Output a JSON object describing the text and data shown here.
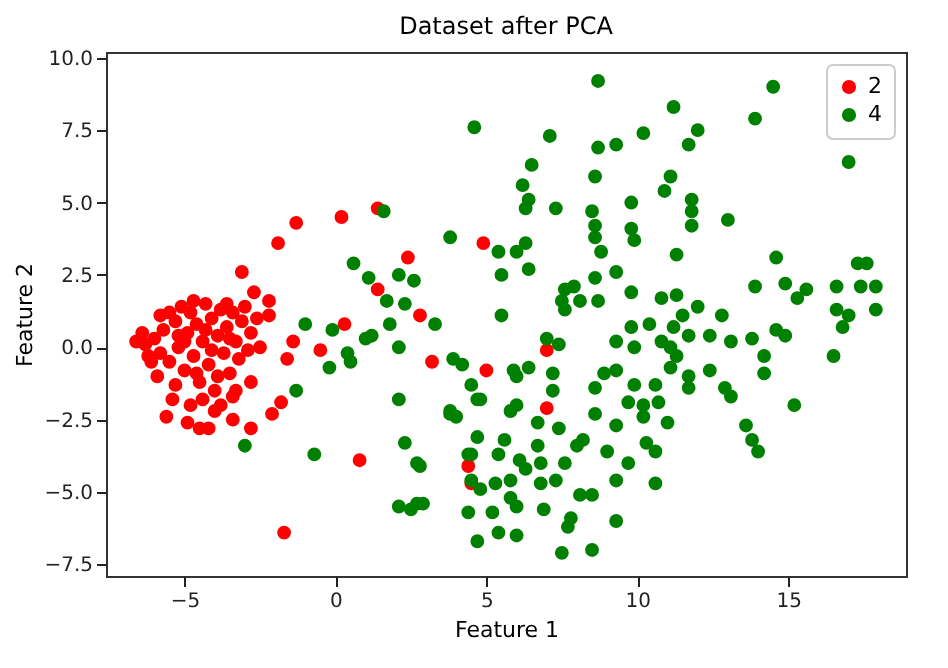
{
  "chart_data": {
    "type": "scatter",
    "title": "Dataset after PCA",
    "xlabel": "Feature 1",
    "ylabel": "Feature 2",
    "xlim": [
      -7.6,
      18.9
    ],
    "ylim": [
      -7.9,
      10.2
    ],
    "xticks": [
      {
        "value": -5,
        "label": "−5"
      },
      0,
      5,
      10,
      15
    ],
    "yticks": [
      {
        "value": -7.5,
        "label": "−7.5"
      },
      {
        "value": -5,
        "label": "−5.0"
      },
      {
        "value": -2.5,
        "label": "−2.5"
      },
      {
        "value": 0,
        "label": "0.0"
      },
      {
        "value": 2.5,
        "label": "2.5"
      },
      {
        "value": 5,
        "label": "5.0"
      },
      {
        "value": 7.5,
        "label": "7.5"
      },
      {
        "value": 10,
        "label": "10.0"
      }
    ],
    "grid": false,
    "legend": "top right",
    "marker": "circle",
    "series": [
      {
        "name": "2",
        "color": "#ff0000",
        "x": [
          1.4,
          0.2,
          -1.3,
          -1.9,
          -3.1,
          2.4,
          1.4,
          2.8,
          0.3,
          -1.4,
          -1.6,
          -0.5,
          3.2,
          5.0,
          4.9,
          0.8,
          -1.7,
          -1.8,
          -2.1,
          -2.8,
          -3.4,
          -3.4,
          -2.8,
          -2.7,
          -2.2,
          -2.2,
          7.0,
          7.0,
          4.5,
          4.4,
          -6.6,
          -6.3,
          -6.0,
          -5.8,
          -5.7,
          -5.5,
          -5.5,
          -5.3,
          -5.2,
          -5.1,
          -5.0,
          -4.9,
          -4.8,
          -4.7,
          -4.6,
          -4.5,
          -4.4,
          -4.3,
          -4.2,
          -4.1,
          -4.0,
          -3.9,
          -3.8,
          -3.7,
          -3.6,
          -3.5,
          -3.4,
          -3.3,
          -3.2,
          -3.1,
          -3.0,
          -2.9,
          -2.8,
          -2.6,
          -2.5,
          -5.4,
          -5.6,
          -4.8,
          -4.9,
          -4.5,
          -4.2,
          -4.0,
          -4.4,
          -5.9,
          -6.1,
          -6.4,
          -5.2,
          -4.6,
          -3.9,
          -4.3,
          -5.0,
          -3.5,
          -4.7,
          -3.6,
          -5.8,
          -4.1,
          -3.3,
          -6.2,
          -5.3,
          -3.8
        ],
        "values": [
          4.8,
          4.5,
          4.3,
          3.6,
          2.6,
          3.1,
          2.0,
          1.1,
          0.8,
          0.2,
          -0.4,
          -0.1,
          -0.5,
          -0.8,
          3.6,
          -3.9,
          -6.4,
          -1.9,
          -2.3,
          -2.8,
          -2.5,
          -1.7,
          -1.2,
          1.9,
          1.6,
          1.1,
          -0.1,
          -2.1,
          -4.7,
          -4.1,
          0.2,
          0.1,
          0.3,
          -0.2,
          0.6,
          1.2,
          -0.5,
          0.9,
          0.0,
          1.4,
          -0.8,
          0.5,
          1.2,
          -0.3,
          0.8,
          -1.2,
          0.2,
          1.5,
          -0.6,
          1.0,
          -1.5,
          0.4,
          1.3,
          -0.2,
          0.7,
          -0.9,
          1.2,
          0.2,
          -0.4,
          0.9,
          1.4,
          -0.1,
          0.5,
          1.0,
          0.0,
          -1.8,
          -2.4,
          -2.0,
          -2.6,
          -2.8,
          -2.8,
          -2.2,
          -1.8,
          -1.0,
          -0.5,
          0.5,
          0.4,
          -0.9,
          -1.0,
          0.6,
          0.2,
          0.3,
          1.6,
          1.5,
          1.1,
          -0.1,
          -1.5,
          -0.3,
          -1.3,
          -2.0
        ]
      },
      {
        "name": "4",
        "color": "#008000",
        "x": [
          8.7,
          14.5,
          4.6,
          11.2,
          13.9,
          12.0,
          10.2,
          7.1,
          9.3,
          8.7,
          11.7,
          17.0,
          6.5,
          8.6,
          11.1,
          10.9,
          6.2,
          6.4,
          6.3,
          7.3,
          9.8,
          11.8,
          8.5,
          11.8,
          13.0,
          8.6,
          9.8,
          11.8,
          3.8,
          8.6,
          9.9,
          6.3,
          5.4,
          6.0,
          5.5,
          6.4,
          8.8,
          11.3,
          14.6,
          17.3,
          17.6,
          9.3,
          8.6,
          7.6,
          7.9,
          7.5,
          8.1,
          8.7,
          9.8,
          10.8,
          11.3,
          13.9,
          14.9,
          15.6,
          15.3,
          16.6,
          17.4,
          17.9,
          7.6,
          12.0,
          11.5,
          16.6,
          17.9,
          17.0,
          5.5,
          3.3,
          9.8,
          10.4,
          11.2,
          12.8,
          14.6,
          16.8,
          7.0,
          9.3,
          9.9,
          10.8,
          11.1,
          11.7,
          12.4,
          13.1,
          13.8,
          14.2,
          14.9,
          16.5,
          7.4,
          3.9,
          4.2,
          5.9,
          6.4,
          7.2,
          11.3,
          11.7,
          11.1,
          12.4,
          9.3,
          8.9,
          14.2,
          4.5,
          6.0,
          7.2,
          8.6,
          9.9,
          10.6,
          11.7,
          12.9,
          4.8,
          6.0,
          9.7,
          10.2,
          10.7,
          13.1,
          15.2,
          3.8,
          5.8,
          6.7,
          8.6,
          10.2,
          11.0,
          9.3,
          7.4,
          4.7,
          5.6,
          6.7,
          8.2,
          10.3,
          13.6,
          13.8,
          14.0,
          2.7,
          4.4,
          5.4,
          6.1,
          6.8,
          7.6,
          8.0,
          9.0,
          9.7,
          10.6,
          4.5,
          5.3,
          5.8,
          6.3,
          6.8,
          7.3,
          9.3,
          10.6,
          4.8,
          5.8,
          8.1,
          8.5,
          2.7,
          4.4,
          5.2,
          6.0,
          6.9,
          7.8,
          5.4,
          6.0,
          7.7,
          9.3,
          4.7,
          7.5,
          8.5,
          1.6,
          0.6,
          1.1,
          2.1,
          2.6,
          1.7,
          2.3,
          -1.0,
          -0.1,
          1.8,
          1.2,
          1.0,
          2.1,
          -0.2,
          0.4,
          0.5,
          -1.3,
          2.1,
          3.8,
          4.0,
          -3.0,
          -0.7,
          2.3,
          2.8,
          2.1,
          2.5,
          2.9,
          4.5,
          4.7
        ],
        "values": [
          9.2,
          9.0,
          7.6,
          8.3,
          7.9,
          7.5,
          7.4,
          7.3,
          7.0,
          6.9,
          7.0,
          6.4,
          6.3,
          5.9,
          5.9,
          5.4,
          5.6,
          5.1,
          4.8,
          4.8,
          5.0,
          5.1,
          4.7,
          4.7,
          4.4,
          4.2,
          4.1,
          4.2,
          3.8,
          3.8,
          3.7,
          3.6,
          3.3,
          3.3,
          2.5,
          2.7,
          3.3,
          3.2,
          3.1,
          2.9,
          2.9,
          2.6,
          2.4,
          2.0,
          2.1,
          1.6,
          1.6,
          1.6,
          1.9,
          1.7,
          1.8,
          2.1,
          2.2,
          2.0,
          1.7,
          2.1,
          2.1,
          2.1,
          1.3,
          1.4,
          1.1,
          1.3,
          1.3,
          1.1,
          1.1,
          0.8,
          0.7,
          0.8,
          0.7,
          1.1,
          0.6,
          0.7,
          0.3,
          0.2,
          0.0,
          0.2,
          0.0,
          0.4,
          0.4,
          0.2,
          0.3,
          -0.3,
          0.4,
          -0.3,
          0.1,
          -0.4,
          -0.6,
          -0.8,
          -0.7,
          -0.9,
          -0.3,
          -1.0,
          -0.7,
          -0.8,
          -0.8,
          -0.9,
          -0.9,
          -1.3,
          -1.0,
          -1.5,
          -1.4,
          -1.3,
          -1.3,
          -1.4,
          -1.4,
          -1.8,
          -2.0,
          -1.9,
          -2.0,
          -1.9,
          -1.7,
          -2.0,
          -2.3,
          -2.2,
          -2.6,
          -2.3,
          -2.4,
          -2.6,
          -2.7,
          -2.8,
          -3.1,
          -3.2,
          -3.4,
          -3.2,
          -3.3,
          -2.7,
          -3.2,
          -3.6,
          -4.0,
          -3.7,
          -3.7,
          -3.9,
          -4.0,
          -4.0,
          -3.4,
          -3.6,
          -4.0,
          -3.6,
          -4.6,
          -4.7,
          -4.6,
          -4.2,
          -4.7,
          -4.6,
          -4.6,
          -4.7,
          -4.9,
          -5.2,
          -5.1,
          -5.1,
          -5.4,
          -5.7,
          -5.7,
          -5.5,
          -5.6,
          -5.9,
          -6.4,
          -6.5,
          -6.2,
          -6.0,
          -6.7,
          -7.1,
          -7.0,
          4.7,
          2.9,
          2.4,
          2.5,
          2.3,
          1.6,
          1.5,
          0.8,
          0.6,
          0.8,
          0.4,
          0.3,
          0.0,
          -0.7,
          -0.2,
          -0.5,
          -1.5,
          -1.8,
          -2.2,
          -2.4,
          -3.4,
          -3.7,
          -3.3,
          -4.1,
          -5.5,
          -5.6,
          -5.4,
          -3.7,
          -1.8
        ]
      }
    ]
  }
}
